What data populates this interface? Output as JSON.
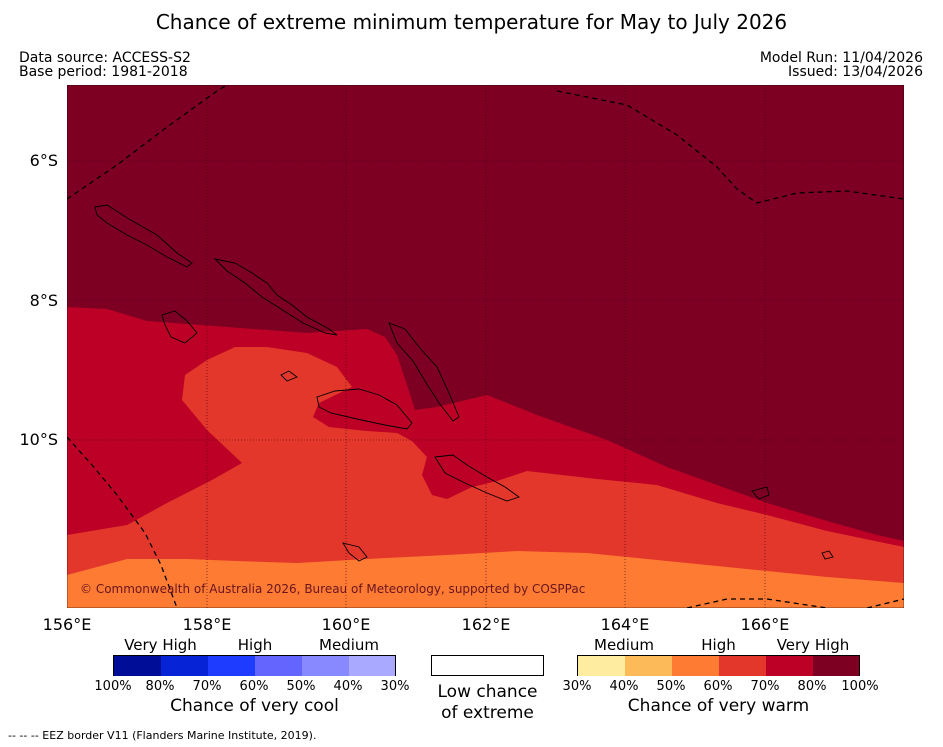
{
  "title": "Chance of extreme minimum temperature for May to July 2026",
  "data_source": "Data source: ACCESS-S2",
  "base_period": "Base period: 1981-2018",
  "model_run": "Model Run: 11/04/2026",
  "issued": "Issued: 13/04/2026",
  "copyright": "© Commonwealth of Australia 2026, Bureau of Meteorology, supported by COSPPac",
  "longitude_labels": [
    "156°E",
    "158°E",
    "160°E",
    "162°E",
    "164°E",
    "166°E"
  ],
  "latitude_labels": [
    "6°S",
    "8°S",
    "10°S"
  ],
  "colors": {
    "very_high_warm": "#7d0022",
    "high_warm_80": "#bd0026",
    "high_warm_70": "#e2372a",
    "medium_warm_60": "#fd7b33",
    "medium_warm_50": "#fdba58",
    "low_warm_40": "#feeda0"
  },
  "legend": {
    "cool": {
      "categories": [
        "Very High",
        "High",
        "Medium"
      ],
      "colors": [
        "#000d96",
        "#0623d6",
        "#1e3cff",
        "#6464ff",
        "#8989ff",
        "#a9a9ff"
      ],
      "percent_labels": [
        "100%",
        "80%",
        "70%",
        "60%",
        "50%",
        "40%",
        "30%"
      ],
      "title": "Chance of very cool"
    },
    "neutral": {
      "line1": "Low chance",
      "line2": "of extreme",
      "color": "#ffffff"
    },
    "warm": {
      "categories": [
        "Medium",
        "High",
        "Very High"
      ],
      "colors": [
        "#feeda0",
        "#fdba58",
        "#fd7b33",
        "#e2372a",
        "#bd0026",
        "#7d0022"
      ],
      "percent_labels": [
        "30%",
        "40%",
        "50%",
        "60%",
        "70%",
        "80%",
        "100%"
      ],
      "title": "Chance of very warm"
    }
  },
  "eez_note": "--  --  -- EEZ border V11 (Flanders Marine Institute, 2019)."
}
